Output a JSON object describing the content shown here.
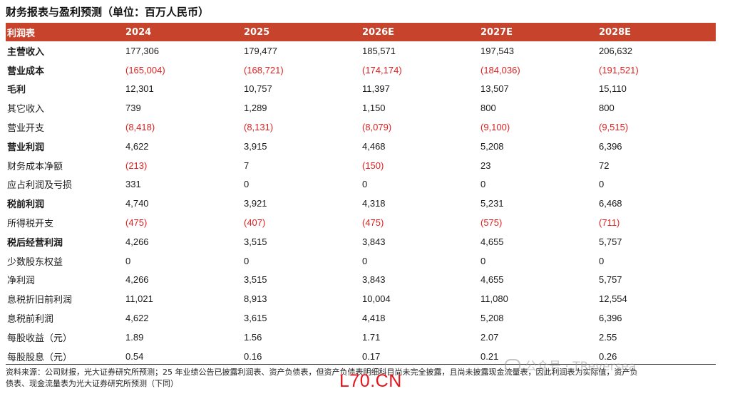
{
  "title": "财务报表与盈利预测（单位：百万人民币）",
  "table": {
    "headers": [
      "利润表",
      "2024",
      "2025",
      "2026E",
      "2027E",
      "2028E"
    ],
    "rows": [
      {
        "label": "主营收入",
        "bold": true,
        "values": [
          "177,306",
          "179,477",
          "185,571",
          "197,543",
          "206,632"
        ]
      },
      {
        "label": "营业成本",
        "bold": true,
        "values": [
          "(165,004)",
          "(168,721)",
          "(174,174)",
          "(184,036)",
          "(191,521)"
        ]
      },
      {
        "label": "毛利",
        "bold": true,
        "values": [
          "12,301",
          "10,757",
          "11,397",
          "13,507",
          "15,110"
        ]
      },
      {
        "label": "其它收入",
        "bold": false,
        "values": [
          "739",
          "1,289",
          "1,150",
          "800",
          "800"
        ]
      },
      {
        "label": "营业开支",
        "bold": false,
        "values": [
          "(8,418)",
          "(8,131)",
          "(8,079)",
          "(9,100)",
          "(9,515)"
        ]
      },
      {
        "label": "营业利润",
        "bold": true,
        "values": [
          "4,622",
          "3,915",
          "4,468",
          "5,208",
          "6,396"
        ]
      },
      {
        "label": "财务成本净额",
        "bold": false,
        "values": [
          "(213)",
          "7",
          "(150)",
          "23",
          "72"
        ]
      },
      {
        "label": "应占利润及亏损",
        "bold": false,
        "values": [
          "331",
          "0",
          "0",
          "0",
          "0"
        ]
      },
      {
        "label": "税前利润",
        "bold": true,
        "values": [
          "4,740",
          "3,921",
          "4,318",
          "5,231",
          "6,468"
        ]
      },
      {
        "label": "所得税开支",
        "bold": false,
        "values": [
          "(475)",
          "(407)",
          "(475)",
          "(575)",
          "(711)"
        ]
      },
      {
        "label": "税后经营利润",
        "bold": true,
        "values": [
          "4,266",
          "3,515",
          "3,843",
          "4,655",
          "5,757"
        ]
      },
      {
        "label": "少数股东权益",
        "bold": false,
        "values": [
          "0",
          "0",
          "0",
          "0",
          "0"
        ]
      },
      {
        "label": "净利润",
        "bold": false,
        "values": [
          "4,266",
          "3,515",
          "3,843",
          "4,655",
          "5,757"
        ]
      },
      {
        "label": "息税折旧前利润",
        "bold": false,
        "values": [
          "11,021",
          "8,913",
          "10,004",
          "11,080",
          "12,554"
        ]
      },
      {
        "label": "息税前利润",
        "bold": false,
        "values": [
          "4,622",
          "3,615",
          "4,418",
          "5,208",
          "6,396"
        ]
      },
      {
        "label": "每股收益（元）",
        "bold": false,
        "values": [
          "1.89",
          "1.56",
          "1.71",
          "2.07",
          "2.55"
        ]
      },
      {
        "label": "每股股息（元）",
        "bold": false,
        "values": [
          "0.54",
          "0.16",
          "0.17",
          "0.21",
          "0.26"
        ]
      }
    ]
  },
  "note_line1": "资料来源：公司财报，光大证券研究所预测；25 年业绩公告已披露利润表、资产负债表，但资产负债表明细科目尚未完全披露，且尚未披露现金流量表，因此利润表为实际值，资产负",
  "note_line2": "债表、现金流量表为光大证券研究所预测（下同）",
  "watermark": "公众号 · TReversea",
  "stamp": "L70.CN",
  "colors": {
    "header_bg": "#c8432b",
    "negative": "#e02020",
    "stamp": "#e8141c"
  }
}
